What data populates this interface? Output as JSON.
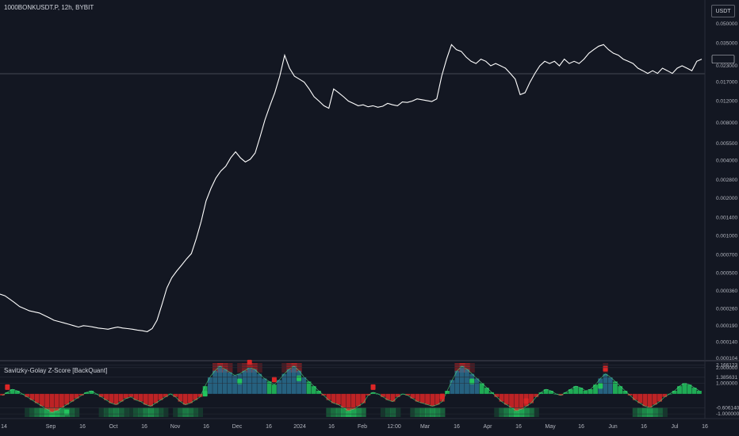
{
  "header": {
    "symbol": "1000BONKUSDT.P, 12h, BYBIT",
    "currency_button": "USDT"
  },
  "indicator": {
    "title": "Savitzky-Golay Z-Score [BackQuant]"
  },
  "colors": {
    "background": "#131722",
    "price_line": "#ffffff",
    "crosshair": "#787b86",
    "bull": "#22c55e",
    "bear": "#dc2626",
    "hist_blue": "#2a6f8f"
  },
  "chart_data": [
    {
      "type": "line",
      "scale": "log",
      "x_labels": [
        "14",
        "Sep",
        "16",
        "Oct",
        "16",
        "Nov",
        "16",
        "Dec",
        "16",
        "2024",
        "16",
        "Feb",
        "12:00",
        "Mar",
        "16",
        "Apr",
        "16",
        "May",
        "16",
        "Jun",
        "16",
        "Jul",
        "16"
      ],
      "y_ticks": [
        "0.050000",
        "0.035000",
        "0.023000",
        "0.017000",
        "0.012000",
        "0.008000",
        "0.005500",
        "0.004000",
        "0.002800",
        "0.002000",
        "0.001400",
        "0.001000",
        "0.000700",
        "0.000500",
        "0.000360",
        "0.000260",
        "0.000190",
        "0.000140",
        "0.000104"
      ],
      "ylim": [
        0.000104,
        0.065
      ],
      "series": [
        {
          "values": [
            0.00034,
            0.00033,
            0.00031,
            0.00029,
            0.00027,
            0.00026,
            0.00025,
            0.000245,
            0.00024,
            0.00023,
            0.00022,
            0.00021,
            0.000205,
            0.0002,
            0.000195,
            0.00019,
            0.000185,
            0.00019,
            0.000188,
            0.000185,
            0.000182,
            0.00018,
            0.000178,
            0.000182,
            0.000185,
            0.000182,
            0.00018,
            0.000178,
            0.000175,
            0.000173,
            0.00017,
            0.00018,
            0.00021,
            0.00028,
            0.00038,
            0.00046,
            0.00052,
            0.00058,
            0.00065,
            0.00072,
            0.00095,
            0.0013,
            0.0019,
            0.0024,
            0.0029,
            0.0033,
            0.0036,
            0.0042,
            0.0047,
            0.0042,
            0.0039,
            0.0041,
            0.0046,
            0.0062,
            0.0085,
            0.011,
            0.014,
            0.019,
            0.028,
            0.022,
            0.019,
            0.018,
            0.017,
            0.015,
            0.013,
            0.012,
            0.011,
            0.0105,
            0.015,
            0.014,
            0.013,
            0.012,
            0.0115,
            0.011,
            0.0112,
            0.0108,
            0.011,
            0.0107,
            0.0109,
            0.0115,
            0.0112,
            0.011,
            0.0118,
            0.0117,
            0.012,
            0.0125,
            0.0123,
            0.0121,
            0.0119,
            0.0125,
            0.019,
            0.026,
            0.034,
            0.031,
            0.03,
            0.027,
            0.025,
            0.024,
            0.026,
            0.025,
            0.023,
            0.024,
            0.023,
            0.022,
            0.02,
            0.018,
            0.0135,
            0.014,
            0.017,
            0.02,
            0.023,
            0.025,
            0.024,
            0.025,
            0.023,
            0.026,
            0.024,
            0.025,
            0.024,
            0.026,
            0.029,
            0.031,
            0.033,
            0.034,
            0.031,
            0.029,
            0.028,
            0.026,
            0.025,
            0.024,
            0.022,
            0.021,
            0.02,
            0.021,
            0.02,
            0.022,
            0.021,
            0.02,
            0.022,
            0.023,
            0.022,
            0.021,
            0.025,
            0.026
          ]
        }
      ]
    },
    {
      "type": "bar",
      "title": "Savitzky-Golay Z-Score [BackQuant]",
      "y_ticks": [
        "2.166123",
        "2.000000",
        "1.385631",
        "1.000000",
        "-0.606140",
        "-1.000000"
      ],
      "ylim": [
        -1.2,
        2.3
      ],
      "x_labels": [
        "14",
        "Sep",
        "16",
        "Oct",
        "16",
        "Nov",
        "16",
        "Dec",
        "16",
        "2024",
        "16",
        "Feb",
        "12:00",
        "Mar",
        "16",
        "Apr",
        "16",
        "May",
        "16",
        "Jun",
        "16",
        "Jul",
        "16"
      ],
      "values": [
        0.2,
        0.4,
        0.6,
        0.5,
        0.3,
        0.1,
        -0.1,
        -0.3,
        -0.5,
        -0.7,
        -0.9,
        -0.8,
        -0.6,
        -0.4,
        -0.2,
        0.0,
        0.2,
        0.4,
        0.5,
        0.3,
        0.1,
        -0.1,
        -0.3,
        -0.4,
        -0.2,
        0.0,
        0.1,
        -0.1,
        -0.2,
        -0.4,
        -0.5,
        -0.3,
        -0.1,
        0.1,
        0.3,
        0.1,
        -0.2,
        -0.4,
        -0.3,
        -0.1,
        0.1,
        0.8,
        1.4,
        1.8,
        2.1,
        1.9,
        1.7,
        1.5,
        1.6,
        1.8,
        2.0,
        1.9,
        1.6,
        1.3,
        1.1,
        0.9,
        1.2,
        1.6,
        1.9,
        2.1,
        1.8,
        1.4,
        1.1,
        0.8,
        0.5,
        0.2,
        -0.1,
        -0.3,
        -0.4,
        -0.6,
        -0.8,
        -0.7,
        -0.5,
        -0.3,
        0.2,
        0.4,
        0.3,
        0.1,
        -0.1,
        -0.2,
        0.1,
        0.3,
        0.2,
        0.0,
        -0.2,
        -0.3,
        -0.4,
        -0.5,
        -0.4,
        -0.2,
        0.5,
        1.2,
        1.8,
        2.1,
        1.9,
        1.6,
        1.3,
        1.0,
        0.7,
        0.4,
        0.1,
        -0.2,
        -0.4,
        -0.6,
        -0.8,
        -0.7,
        -0.5,
        -0.3,
        0.1,
        0.4,
        0.6,
        0.5,
        0.3,
        0.2,
        0.4,
        0.6,
        0.8,
        0.7,
        0.5,
        0.6,
        0.9,
        1.3,
        1.6,
        1.4,
        1.1,
        0.8,
        0.5,
        0.2,
        -0.1,
        -0.3,
        -0.5,
        -0.6,
        -0.4,
        -0.2,
        0.1,
        0.3,
        0.5,
        0.8,
        1.0,
        0.9,
        0.7,
        0.5
      ],
      "markers": [
        {
          "index": 1,
          "type": "bear"
        },
        {
          "index": 13,
          "type": "bull"
        },
        {
          "index": 41,
          "type": "bull"
        },
        {
          "index": 48,
          "type": "bull"
        },
        {
          "index": 50,
          "type": "bear"
        },
        {
          "index": 55,
          "type": "bear"
        },
        {
          "index": 60,
          "type": "bull"
        },
        {
          "index": 75,
          "type": "bear"
        },
        {
          "index": 89,
          "type": "bear"
        },
        {
          "index": 95,
          "type": "bull"
        },
        {
          "index": 106,
          "type": "bear"
        },
        {
          "index": 121,
          "type": "bull"
        },
        {
          "index": 122,
          "type": "bear"
        }
      ]
    }
  ]
}
